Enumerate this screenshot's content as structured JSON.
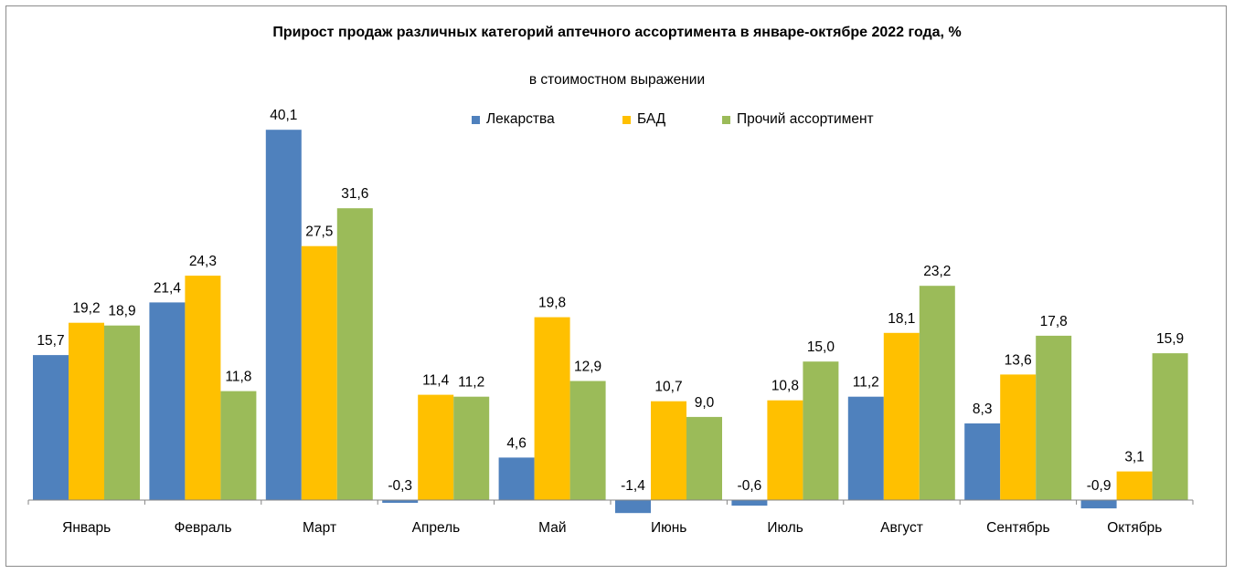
{
  "chart_data": {
    "type": "bar",
    "title": "Прирост продаж различных категорий аптечного ассортимента в январе-октябре  2022 года, %",
    "subtitle": "в стоимостном выражении",
    "xlabel": "",
    "ylabel": "",
    "legend_position": "top",
    "grid": false,
    "categories": [
      "Январь",
      "Февраль",
      "Март",
      "Апрель",
      "Май",
      "Июнь",
      "Июль",
      "Август",
      "Сентябрь",
      "Октябрь"
    ],
    "series": [
      {
        "name": "Лекарства",
        "color": "#4F81BD",
        "values": [
          15.7,
          21.4,
          40.1,
          -0.3,
          4.6,
          -1.4,
          -0.6,
          11.2,
          8.3,
          -0.9
        ],
        "labels": [
          "15,7",
          "21,4",
          "40,1",
          "-0,3",
          "4,6",
          "-1,4",
          "-0,6",
          "11,2",
          "8,3",
          "-0,9"
        ]
      },
      {
        "name": "БАД",
        "color": "#FFC000",
        "values": [
          19.2,
          24.3,
          27.5,
          11.4,
          19.8,
          10.7,
          10.8,
          18.1,
          13.6,
          3.1
        ],
        "labels": [
          "19,2",
          "24,3",
          "27,5",
          "11,4",
          "19,8",
          "10,7",
          "10,8",
          "18,1",
          "13,6",
          "3,1"
        ]
      },
      {
        "name": "Прочий ассортимент",
        "color": "#9BBB59",
        "values": [
          18.9,
          11.8,
          31.6,
          11.2,
          12.9,
          9.0,
          15.0,
          23.2,
          17.8,
          15.9
        ],
        "labels": [
          "18,9",
          "11,8",
          "31,6",
          "11,2",
          "12,9",
          "9,0",
          "15,0",
          "23,2",
          "17,8",
          "15,9"
        ]
      }
    ]
  }
}
